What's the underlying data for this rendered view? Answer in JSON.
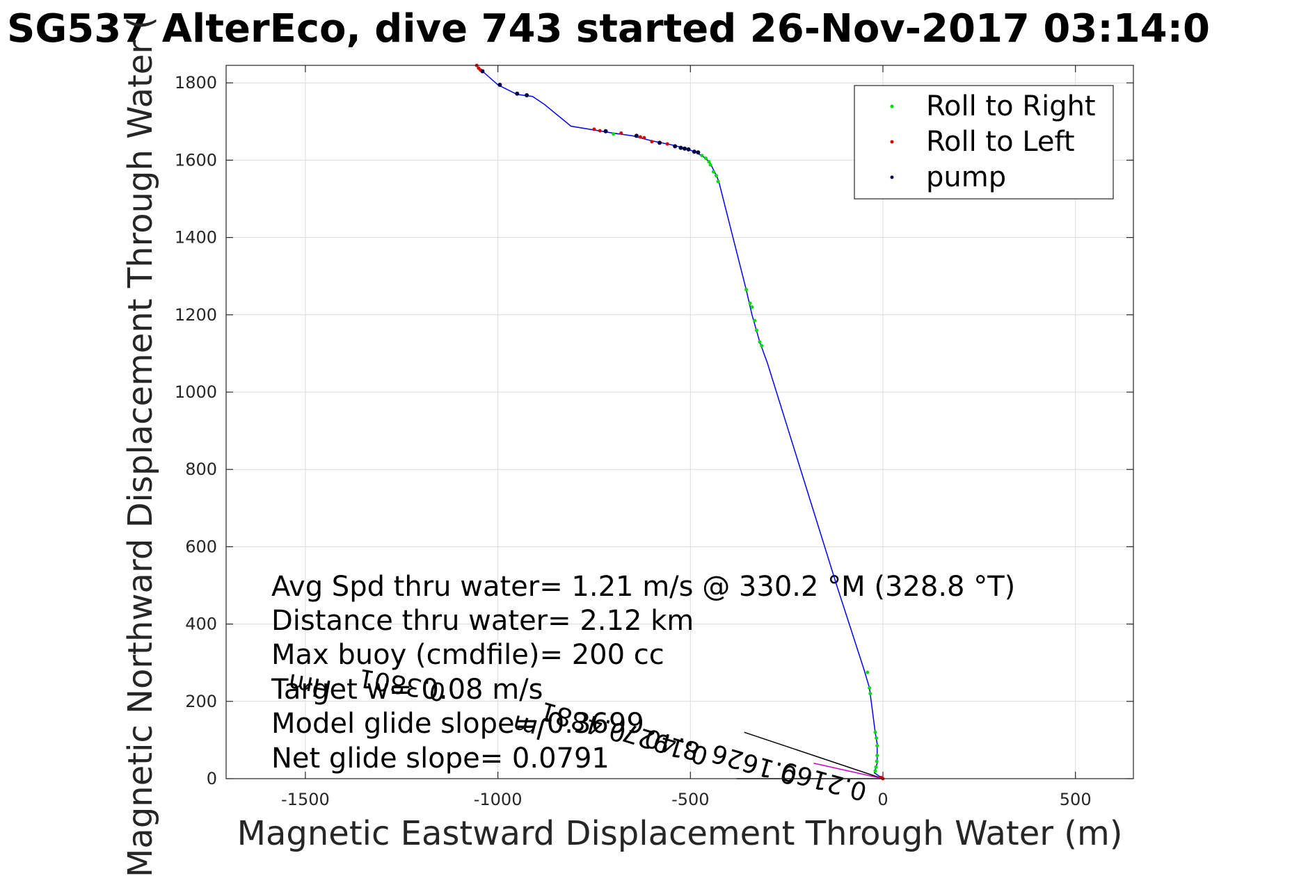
{
  "chart_data": {
    "type": "scatter",
    "title": "SG537 AlterEco, dive 743 started 26-Nov-2017 03:14:0",
    "xlabel": "Magnetic Eastward Displacement Through Water (m)",
    "ylabel": "Magnetic Northward Displacement Through Water (",
    "xlim": [
      -1700,
      630
    ],
    "ylim": [
      0,
      1845
    ],
    "xticks": [
      -1500,
      -1000,
      -500,
      0,
      500
    ],
    "yticks": [
      0,
      200,
      400,
      600,
      800,
      1000,
      1200,
      1400,
      1600,
      1800
    ],
    "grid": true,
    "legend_position": "top-right",
    "colors": {
      "track": "#0000ee",
      "roll_right": "#00dd00",
      "roll_left": "#dd0000",
      "pump": "#000044",
      "current": "#cc00cc"
    },
    "track": [
      [
        -1055,
        1845
      ],
      [
        -1040,
        1830
      ],
      [
        -1000,
        1795
      ],
      [
        -950,
        1770
      ],
      [
        -910,
        1765
      ],
      [
        -880,
        1745
      ],
      [
        -810,
        1688
      ],
      [
        -750,
        1678
      ],
      [
        -700,
        1670
      ],
      [
        -650,
        1663
      ],
      [
        -600,
        1650
      ],
      [
        -550,
        1640
      ],
      [
        -510,
        1630
      ],
      [
        -485,
        1620
      ],
      [
        -465,
        1608
      ],
      [
        -450,
        1595
      ],
      [
        -440,
        1575
      ],
      [
        -430,
        1555
      ],
      [
        -425,
        1540
      ],
      [
        -355,
        1265
      ],
      [
        -340,
        1200
      ],
      [
        -320,
        1130
      ],
      [
        -300,
        1075
      ],
      [
        -120,
        500
      ],
      [
        -50,
        285
      ],
      [
        -35,
        235
      ],
      [
        -20,
        120
      ],
      [
        -15,
        90
      ],
      [
        -15,
        40
      ],
      [
        -22,
        15
      ],
      [
        0,
        0
      ]
    ],
    "series": [
      {
        "name": "Roll to Right",
        "points": [
          [
            -470,
            1612
          ],
          [
            -460,
            1605
          ],
          [
            -452,
            1596
          ],
          [
            -448,
            1588
          ],
          [
            -440,
            1570
          ],
          [
            -433,
            1560
          ],
          [
            -428,
            1545
          ],
          [
            -700,
            1668
          ],
          [
            -355,
            1265
          ],
          [
            -345,
            1230
          ],
          [
            -340,
            1220
          ],
          [
            -333,
            1185
          ],
          [
            -328,
            1160
          ],
          [
            -320,
            1130
          ],
          [
            -315,
            1120
          ],
          [
            -40,
            275
          ],
          [
            -35,
            235
          ],
          [
            -33,
            220
          ],
          [
            -20,
            120
          ],
          [
            -17,
            105
          ],
          [
            -15,
            85
          ],
          [
            -15,
            60
          ],
          [
            -16,
            45
          ],
          [
            -18,
            30
          ],
          [
            -20,
            20
          ]
        ]
      },
      {
        "name": "Roll to Left",
        "points": [
          [
            -1055,
            1845
          ],
          [
            -1050,
            1838
          ],
          [
            -1045,
            1833
          ],
          [
            -750,
            1680
          ],
          [
            -735,
            1676
          ],
          [
            -720,
            1674
          ],
          [
            -680,
            1670
          ],
          [
            -640,
            1664
          ],
          [
            -630,
            1660
          ],
          [
            -620,
            1658
          ],
          [
            -600,
            1648
          ],
          [
            -560,
            1642
          ],
          [
            -5,
            3
          ],
          [
            0,
            0
          ]
        ]
      },
      {
        "name": "pump",
        "points": [
          [
            -1040,
            1830
          ],
          [
            -995,
            1795
          ],
          [
            -950,
            1772
          ],
          [
            -925,
            1768
          ],
          [
            -720,
            1675
          ],
          [
            -640,
            1663
          ],
          [
            -580,
            1645
          ],
          [
            -540,
            1636
          ],
          [
            -525,
            1632
          ],
          [
            -515,
            1630
          ],
          [
            -505,
            1628
          ],
          [
            -490,
            1622
          ],
          [
            -480,
            1620
          ]
        ]
      }
    ],
    "current_vectors": [
      {
        "from": [
          -360,
          120
        ],
        "to": [
          0,
          0
        ],
        "color": "#000000"
      },
      {
        "from": [
          -380,
          0
        ],
        "to": [
          0,
          0
        ],
        "color": "#000000"
      },
      {
        "from": [
          -180,
          40
        ],
        "to": [
          0,
          0
        ],
        "color": "#cc00cc"
      }
    ],
    "stats_text": [
      "Avg Spd thru water=  1.21 m/s @ 330.2 °M (328.8 °T)",
      "Distance thru water=  2.12 km",
      "Max buoy (cmdfile)= 200 cc",
      "Target w= 0.08 m/s",
      "Model glide slope= 0.3699",
      "Net glide slope= 0.0791"
    ],
    "overlay_text": [
      "0.2169",
      "0.1626",
      "0.1927",
      "8.40",
      "0.4881",
      "0.3801",
      "Hm",
      "Jm"
    ]
  }
}
